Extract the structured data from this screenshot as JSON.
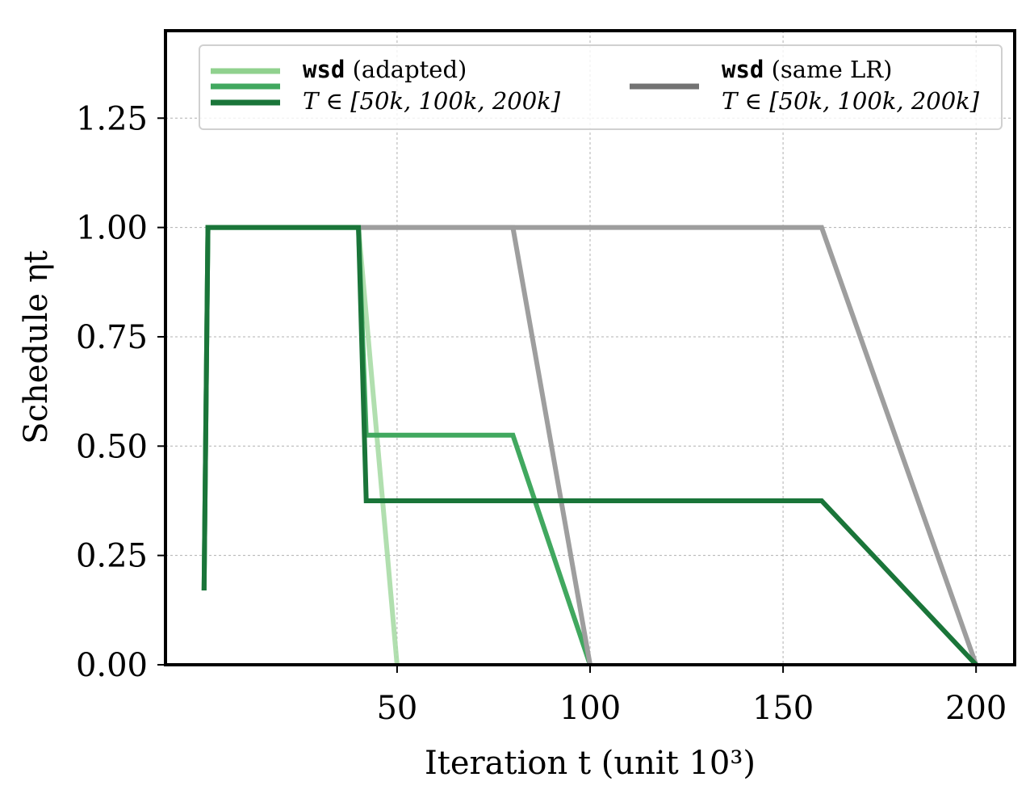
{
  "chart_data": {
    "type": "line",
    "xlabel": "Iteration t (unit 10³)",
    "ylabel": "Schedule ηt",
    "xlim": [
      -10,
      210
    ],
    "ylim": [
      0,
      1.45
    ],
    "xticks": [
      50,
      100,
      150,
      200
    ],
    "yticks": [
      0,
      0.25,
      0.5,
      0.75,
      1.0,
      1.25
    ],
    "xtick_labels": [
      "50",
      "100",
      "150",
      "200"
    ],
    "ytick_labels": [
      "0.00",
      "0.25",
      "0.50",
      "0.75",
      "1.00",
      "1.25"
    ],
    "grid": true,
    "legend_placement": "top",
    "legend": [
      {
        "code": "wsd",
        "rest": " (adapted)",
        "line2": "T ∈ [50k, 100k, 200k]"
      },
      {
        "code": "wsd",
        "rest": " (same LR)",
        "line2": "T ∈ [50k, 100k, 200k]"
      }
    ],
    "series": [
      {
        "group": "wsd (adapted)",
        "T": "50k",
        "color": "#a8dba6",
        "opacity": 0.9,
        "x": [
          0,
          1,
          40,
          50
        ],
        "y": [
          0.17,
          1.0,
          1.0,
          0.0
        ]
      },
      {
        "group": "wsd (adapted)",
        "T": "100k",
        "color": "#41a85f",
        "opacity": 1,
        "x": [
          0,
          1,
          40,
          42,
          80,
          100
        ],
        "y": [
          0.17,
          1.0,
          1.0,
          0.525,
          0.525,
          0.0
        ]
      },
      {
        "group": "wsd (same LR)",
        "T": "100k",
        "color": "#9e9e9e",
        "opacity": 1,
        "x": [
          40,
          80,
          100
        ],
        "y": [
          1.0,
          1.0,
          0.0
        ]
      },
      {
        "group": "wsd (same LR)",
        "T": "200k",
        "color": "#9e9e9e",
        "opacity": 1,
        "x": [
          40,
          160,
          200
        ],
        "y": [
          1.0,
          1.0,
          0.0
        ]
      },
      {
        "group": "wsd (adapted)",
        "T": "200k",
        "color": "#1a7539",
        "opacity": 1,
        "x": [
          0,
          1,
          40,
          42,
          160,
          200
        ],
        "y": [
          0.17,
          1.0,
          1.0,
          0.375,
          0.375,
          0.0
        ]
      }
    ],
    "legend_colors": {
      "adapted": [
        "#90d18e",
        "#41a85f",
        "#1a7539"
      ],
      "same_lr": "#737373"
    }
  }
}
